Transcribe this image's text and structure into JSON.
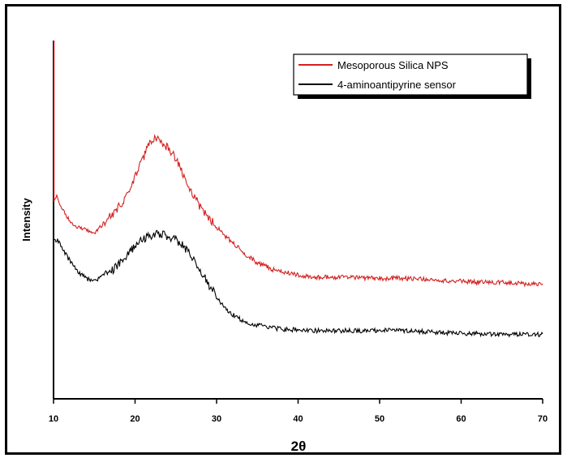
{
  "chart_data": {
    "type": "line",
    "title": "",
    "xlabel": "2θ",
    "ylabel": "Intensity",
    "xlim": [
      10,
      70
    ],
    "ylim": [
      0,
      100
    ],
    "x_ticks": [
      10,
      20,
      30,
      40,
      50,
      60,
      70
    ],
    "y_ticks_shown": false,
    "grid": false,
    "legend_position": "top-right",
    "series": [
      {
        "name": "Mesoporous Silica NPS",
        "color": "#d42020",
        "x": [
          10.1,
          10.4,
          11,
          12,
          13,
          14,
          15,
          16,
          17,
          18,
          19,
          20,
          21,
          21.8,
          22.5,
          23,
          24,
          25,
          26,
          27,
          28,
          29,
          30,
          31,
          32,
          33,
          34,
          35,
          36,
          37,
          38,
          40,
          42,
          45,
          48,
          50,
          52,
          55,
          58,
          60,
          62,
          65,
          68,
          70
        ],
        "values": [
          55,
          56.5,
          53,
          49.5,
          48,
          47,
          46.5,
          48.5,
          51,
          53.5,
          57,
          62,
          67,
          72,
          73,
          72,
          70,
          67,
          62,
          57.5,
          53.5,
          50.5,
          48,
          45.5,
          43.5,
          41.5,
          39.5,
          38,
          37,
          36,
          35.5,
          34.5,
          34,
          34,
          33.8,
          33.5,
          33.7,
          33.5,
          33,
          33,
          32.5,
          32.5,
          32,
          32
        ]
      },
      {
        "name": "4-aminoantipyrine sensor",
        "color": "#000000",
        "x": [
          10.1,
          10.5,
          11,
          12,
          13,
          14,
          15,
          16,
          17,
          18,
          19,
          20,
          21,
          22,
          23,
          24,
          25,
          26,
          27,
          28,
          29,
          30,
          31,
          32,
          33,
          34,
          35,
          36,
          37,
          38,
          40,
          42,
          45,
          48,
          50,
          52,
          55,
          58,
          60,
          62,
          65,
          68,
          70
        ],
        "values": [
          44,
          44.5,
          42,
          38.5,
          35.5,
          33.5,
          33,
          34,
          35.5,
          37.5,
          40,
          42.5,
          44.5,
          45.5,
          46,
          45.5,
          44.5,
          42.5,
          39.5,
          36,
          32,
          28.5,
          25.5,
          23.5,
          22,
          21.2,
          20.6,
          20.1,
          19.8,
          19.4,
          19.2,
          19,
          19,
          19,
          19.1,
          19,
          18.8,
          18.5,
          18.2,
          18.2,
          18,
          18,
          18
        ]
      }
    ]
  }
}
